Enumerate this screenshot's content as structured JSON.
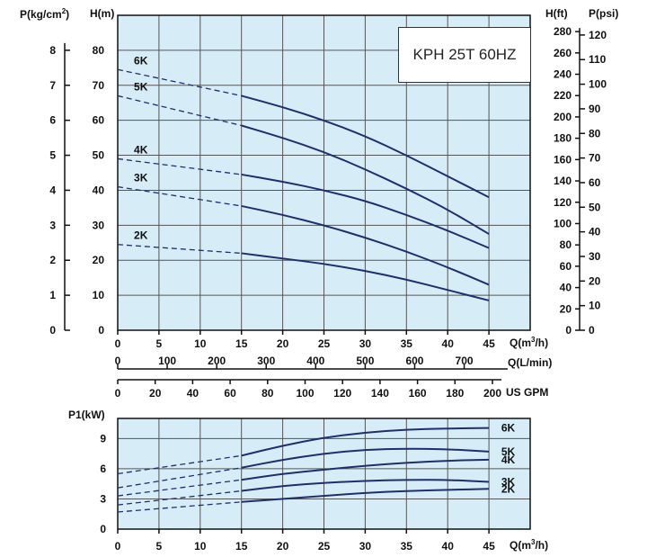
{
  "chart_data": [
    {
      "type": "line",
      "title": "KPH 25T 60HZ",
      "xlabel": "Q(m3/h)",
      "ylabel": "H(m)",
      "x_ticks": [
        0,
        5,
        10,
        15,
        20,
        25,
        30,
        35,
        40,
        45
      ],
      "xlim": [
        0,
        50
      ],
      "ylim": [
        0,
        90
      ],
      "y_ticks": [
        0,
        10,
        20,
        30,
        40,
        50,
        60,
        70,
        80
      ],
      "left_axis_2": {
        "label": "P(kg/cm2)",
        "ticks": [
          0,
          1,
          2,
          3,
          4,
          5,
          6,
          7,
          8
        ]
      },
      "right_axis_1": {
        "label": "H(ft)",
        "ticks": [
          0,
          20,
          40,
          60,
          80,
          100,
          120,
          140,
          160,
          180,
          200,
          220,
          240,
          260,
          280
        ]
      },
      "right_axis_2": {
        "label": "P(psi)",
        "ticks": [
          0,
          10,
          20,
          30,
          40,
          50,
          60,
          70,
          80,
          90,
          100,
          110,
          120
        ]
      },
      "secondary_x_axes": [
        {
          "label": "Q(L/min)",
          "ticks": [
            0,
            100,
            200,
            300,
            400,
            500,
            600,
            700
          ]
        },
        {
          "label": "US GPM",
          "ticks": [
            0,
            20,
            40,
            60,
            80,
            100,
            120,
            140,
            160,
            180,
            200
          ]
        }
      ],
      "series": [
        {
          "name": "6K",
          "dashed": {
            "x": [
              0,
              15
            ],
            "y": [
              74.5,
              67
            ]
          },
          "solid": {
            "x": [
              15,
              20,
              25,
              30,
              35,
              40,
              45
            ],
            "y": [
              67,
              63.8,
              60,
              55.5,
              50,
              44,
              38
            ]
          }
        },
        {
          "name": "5K",
          "dashed": {
            "x": [
              0,
              15
            ],
            "y": [
              67,
              58.5
            ]
          },
          "solid": {
            "x": [
              15,
              20,
              25,
              30,
              35,
              40,
              45
            ],
            "y": [
              58.5,
              55,
              51,
              46,
              40.5,
              34.5,
              27.5
            ]
          }
        },
        {
          "name": "4K",
          "dashed": {
            "x": [
              0,
              15
            ],
            "y": [
              49,
              44.5
            ]
          },
          "solid": {
            "x": [
              15,
              20,
              25,
              30,
              35,
              40,
              45
            ],
            "y": [
              44.5,
              42.5,
              40,
              37,
              33,
              28.5,
              23.5
            ]
          }
        },
        {
          "name": "3K",
          "dashed": {
            "x": [
              0,
              15
            ],
            "y": [
              41,
              35.5
            ]
          },
          "solid": {
            "x": [
              15,
              20,
              25,
              30,
              35,
              40,
              45
            ],
            "y": [
              35.5,
              33,
              30,
              26.5,
              22.5,
              18,
              13
            ]
          }
        },
        {
          "name": "2K",
          "dashed": {
            "x": [
              0,
              15
            ],
            "y": [
              24.5,
              22
            ]
          },
          "solid": {
            "x": [
              15,
              20,
              25,
              30,
              35,
              40,
              45
            ],
            "y": [
              22,
              20.5,
              19,
              17,
              14.5,
              11.5,
              8.5
            ]
          }
        }
      ],
      "grid": true
    },
    {
      "type": "line",
      "ylabel": "P1(kW)",
      "xlabel": "Q(m3/h)",
      "x_ticks": [
        0,
        5,
        10,
        15,
        20,
        25,
        30,
        35,
        40,
        45
      ],
      "xlim": [
        0,
        50
      ],
      "y_ticks": [
        0,
        3,
        6,
        9
      ],
      "ylim": [
        0,
        11
      ],
      "series": [
        {
          "name": "6K",
          "dashed": {
            "x": [
              0,
              15
            ],
            "y": [
              5.5,
              7.3
            ]
          },
          "solid": {
            "x": [
              15,
              20,
              25,
              30,
              35,
              40,
              45
            ],
            "y": [
              7.3,
              8.3,
              9.1,
              9.6,
              9.9,
              10.0,
              10.05
            ]
          }
        },
        {
          "name": "5K",
          "dashed": {
            "x": [
              0,
              15
            ],
            "y": [
              4.1,
              6.1
            ]
          },
          "solid": {
            "x": [
              15,
              20,
              25,
              30,
              35,
              40,
              45
            ],
            "y": [
              6.1,
              6.9,
              7.5,
              7.9,
              8.0,
              7.95,
              7.7
            ]
          }
        },
        {
          "name": "4K",
          "dashed": {
            "x": [
              0,
              15
            ],
            "y": [
              3.3,
              4.9
            ]
          },
          "solid": {
            "x": [
              15,
              20,
              25,
              30,
              35,
              40,
              45
            ],
            "y": [
              4.9,
              5.5,
              5.9,
              6.3,
              6.6,
              6.8,
              6.9
            ]
          }
        },
        {
          "name": "3K",
          "dashed": {
            "x": [
              0,
              15
            ],
            "y": [
              2.4,
              3.8
            ]
          },
          "solid": {
            "x": [
              15,
              20,
              25,
              30,
              35,
              40,
              45
            ],
            "y": [
              3.8,
              4.3,
              4.6,
              4.8,
              4.9,
              4.9,
              4.7
            ]
          }
        },
        {
          "name": "2K",
          "dashed": {
            "x": [
              0,
              15
            ],
            "y": [
              1.7,
              2.7
            ]
          },
          "solid": {
            "x": [
              15,
              20,
              25,
              30,
              35,
              40,
              45
            ],
            "y": [
              2.7,
              3.0,
              3.3,
              3.6,
              3.8,
              3.9,
              4.0
            ]
          }
        }
      ],
      "grid": true
    }
  ],
  "colors": {
    "plot_bg": "#d6ecf7",
    "curve": "#1f2f6e",
    "grid": "#555555",
    "axis": "#111111"
  }
}
